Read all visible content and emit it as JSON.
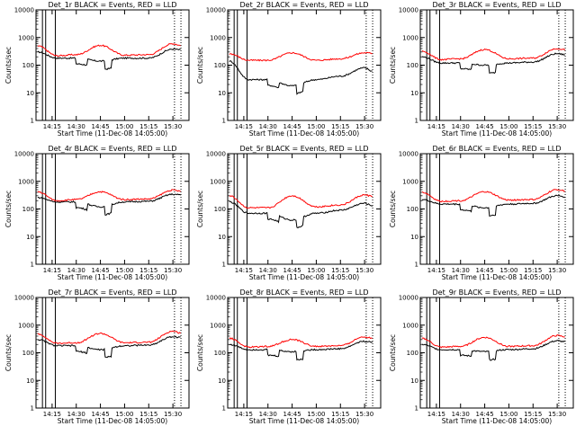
{
  "chart_data": [
    {
      "type": "line",
      "title": "Det_1r BLACK = Events, RED = LLD",
      "xlabel": "Start Time (11-Dec-08 14:05:00)",
      "ylabel": "Counts/sec",
      "yscale": "log",
      "ylim": [
        1,
        10000
      ],
      "x_ticks": [
        "14:15",
        "14:30",
        "14:45",
        "15:00",
        "15:15",
        "15:30"
      ],
      "y_ticks": [
        "1",
        "10",
        "100",
        "1000",
        "10000"
      ],
      "x": [
        "14:06",
        "14:18",
        "14:30",
        "14:45",
        "15:00",
        "15:15",
        "15:30",
        "15:35"
      ],
      "series": [
        {
          "color": "#000000",
          "values": [
            300,
            180,
            180,
            140,
            180,
            180,
            380,
            360
          ]
        },
        {
          "color": "#ff0000",
          "values": [
            500,
            220,
            240,
            520,
            230,
            240,
            600,
            520
          ]
        }
      ]
    },
    {
      "type": "line",
      "title": "Det_2r BLACK = Events, RED = LLD",
      "xlabel": "Start Time (11-Dec-08 14:05:00)",
      "ylabel": "Counts/sec",
      "yscale": "log",
      "ylim": [
        1,
        10000
      ],
      "x_ticks": [
        "14:15",
        "14:30",
        "14:45",
        "15:00",
        "15:15",
        "15:30"
      ],
      "y_ticks": [
        "1",
        "10",
        "100",
        "1000",
        "10000"
      ],
      "x": [
        "14:06",
        "14:18",
        "14:30",
        "14:45",
        "15:00",
        "15:15",
        "15:30",
        "15:35"
      ],
      "series": [
        {
          "color": "#000000",
          "values": [
            140,
            30,
            30,
            18,
            30,
            40,
            80,
            60
          ]
        },
        {
          "color": "#ff0000",
          "values": [
            260,
            150,
            150,
            280,
            150,
            170,
            280,
            270
          ]
        }
      ]
    },
    {
      "type": "line",
      "title": "Det_3r BLACK = Events, RED = LLD",
      "xlabel": "Start Time (11-Dec-08 14:05:00)",
      "ylabel": "Counts/sec",
      "yscale": "log",
      "ylim": [
        1,
        10000
      ],
      "x_ticks": [
        "14:15",
        "14:30",
        "14:45",
        "15:00",
        "15:15",
        "15:30"
      ],
      "y_ticks": [
        "1",
        "10",
        "100",
        "1000",
        "10000"
      ],
      "x": [
        "14:06",
        "14:18",
        "14:30",
        "14:45",
        "15:00",
        "15:15",
        "15:30",
        "15:35"
      ],
      "series": [
        {
          "color": "#000000",
          "values": [
            200,
            120,
            120,
            100,
            120,
            130,
            260,
            240
          ]
        },
        {
          "color": "#ff0000",
          "values": [
            320,
            160,
            170,
            370,
            170,
            180,
            400,
            360
          ]
        }
      ]
    },
    {
      "type": "line",
      "title": "Det_4r BLACK = Events, RED = LLD",
      "xlabel": "Start Time (11-Dec-08 14:05:00)",
      "ylabel": "Counts/sec",
      "yscale": "log",
      "ylim": [
        1,
        10000
      ],
      "x_ticks": [
        "14:15",
        "14:30",
        "14:45",
        "15:00",
        "15:15",
        "15:30"
      ],
      "y_ticks": [
        "1",
        "10",
        "100",
        "1000",
        "10000"
      ],
      "x": [
        "14:06",
        "14:18",
        "14:30",
        "14:45",
        "15:00",
        "15:15",
        "15:30",
        "15:35"
      ],
      "series": [
        {
          "color": "#000000",
          "values": [
            260,
            180,
            180,
            120,
            180,
            190,
            340,
            320
          ]
        },
        {
          "color": "#ff0000",
          "values": [
            420,
            200,
            220,
            420,
            220,
            230,
            480,
            440
          ]
        }
      ]
    },
    {
      "type": "line",
      "title": "Det_5r BLACK = Events, RED = LLD",
      "xlabel": "Start Time (11-Dec-08 14:05:00)",
      "ylabel": "Counts/sec",
      "yscale": "log",
      "ylim": [
        1,
        10000
      ],
      "x_ticks": [
        "14:15",
        "14:30",
        "14:45",
        "15:00",
        "15:15",
        "15:30"
      ],
      "y_ticks": [
        "1",
        "10",
        "100",
        "1000",
        "10000"
      ],
      "x": [
        "14:06",
        "14:18",
        "14:30",
        "14:45",
        "15:00",
        "15:15",
        "15:30",
        "15:35"
      ],
      "series": [
        {
          "color": "#000000",
          "values": [
            180,
            70,
            70,
            40,
            70,
            90,
            160,
            130
          ]
        },
        {
          "color": "#ff0000",
          "values": [
            300,
            110,
            110,
            300,
            120,
            140,
            320,
            290
          ]
        }
      ]
    },
    {
      "type": "line",
      "title": "Det_6r BLACK = Events, RED = LLD",
      "xlabel": "Start Time (11-Dec-08 14:05:00)",
      "ylabel": "Counts/sec",
      "yscale": "log",
      "ylim": [
        1,
        10000
      ],
      "x_ticks": [
        "14:15",
        "14:30",
        "14:45",
        "15:00",
        "15:15",
        "15:30"
      ],
      "y_ticks": [
        "1",
        "10",
        "100",
        "1000",
        "10000"
      ],
      "x": [
        "14:06",
        "14:18",
        "14:30",
        "14:45",
        "15:00",
        "15:15",
        "15:30",
        "15:35"
      ],
      "series": [
        {
          "color": "#000000",
          "values": [
            220,
            150,
            150,
            110,
            150,
            160,
            300,
            280
          ]
        },
        {
          "color": "#ff0000",
          "values": [
            400,
            190,
            200,
            420,
            210,
            220,
            500,
            450
          ]
        }
      ]
    },
    {
      "type": "line",
      "title": "Det_7r BLACK = Events, RED = LLD",
      "xlabel": "Start Time (11-Dec-08 14:05:00)",
      "ylabel": "Counts/sec",
      "yscale": "log",
      "ylim": [
        1,
        10000
      ],
      "x_ticks": [
        "14:15",
        "14:30",
        "14:45",
        "15:00",
        "15:15",
        "15:30"
      ],
      "y_ticks": [
        "1",
        "10",
        "100",
        "1000",
        "10000"
      ],
      "x": [
        "14:06",
        "14:18",
        "14:30",
        "14:45",
        "15:00",
        "15:15",
        "15:30",
        "15:35"
      ],
      "series": [
        {
          "color": "#000000",
          "values": [
            300,
            180,
            180,
            130,
            180,
            190,
            380,
            360
          ]
        },
        {
          "color": "#ff0000",
          "values": [
            480,
            220,
            230,
            500,
            230,
            240,
            600,
            520
          ]
        }
      ]
    },
    {
      "type": "line",
      "title": "Det_8r BLACK = Events, RED = LLD",
      "xlabel": "Start Time (11-Dec-08 14:05:00)",
      "ylabel": "Counts/sec",
      "yscale": "log",
      "ylim": [
        1,
        10000
      ],
      "x_ticks": [
        "14:15",
        "14:30",
        "14:45",
        "15:00",
        "15:15",
        "15:30"
      ],
      "y_ticks": [
        "1",
        "10",
        "100",
        "1000",
        "10000"
      ],
      "x": [
        "14:06",
        "14:18",
        "14:30",
        "14:45",
        "15:00",
        "15:15",
        "15:30",
        "15:35"
      ],
      "series": [
        {
          "color": "#000000",
          "values": [
            200,
            130,
            130,
            110,
            130,
            140,
            260,
            240
          ]
        },
        {
          "color": "#ff0000",
          "values": [
            340,
            160,
            170,
            300,
            170,
            180,
            380,
            340
          ]
        }
      ]
    },
    {
      "type": "line",
      "title": "Det_9r BLACK = Events, RED = LLD",
      "xlabel": "Start Time (11-Dec-08 14:05:00)",
      "ylabel": "Counts/sec",
      "yscale": "log",
      "ylim": [
        1,
        10000
      ],
      "x_ticks": [
        "14:15",
        "14:30",
        "14:45",
        "15:00",
        "15:15",
        "15:30"
      ],
      "y_ticks": [
        "1",
        "10",
        "100",
        "1000",
        "10000"
      ],
      "x": [
        "14:06",
        "14:18",
        "14:30",
        "14:45",
        "15:00",
        "15:15",
        "15:30",
        "15:35"
      ],
      "series": [
        {
          "color": "#000000",
          "values": [
            200,
            130,
            130,
            110,
            130,
            140,
            270,
            250
          ]
        },
        {
          "color": "#ff0000",
          "values": [
            330,
            160,
            170,
            360,
            170,
            180,
            420,
            380
          ]
        }
      ]
    }
  ]
}
